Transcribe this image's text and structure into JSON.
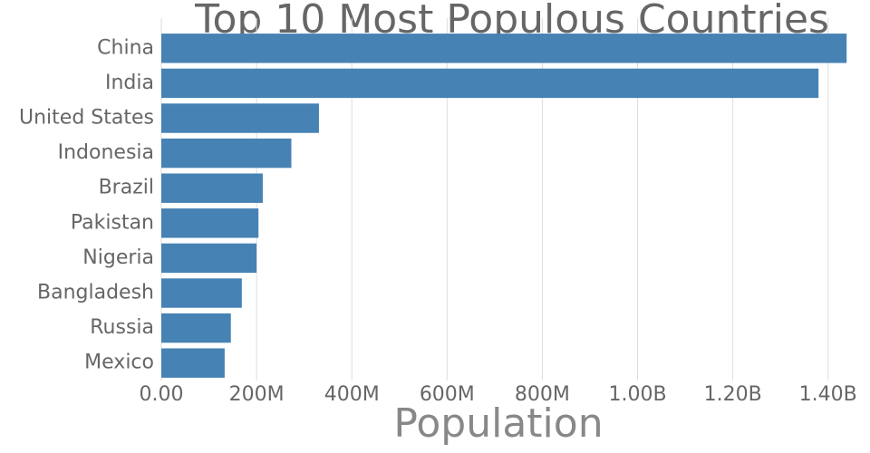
{
  "chart_data": {
    "type": "bar",
    "orientation": "horizontal",
    "title": "Top 10 Most Populous Countries",
    "x_label": "Population",
    "categories": [
      "China",
      "India",
      "United States",
      "Indonesia",
      "Brazil",
      "Pakistan",
      "Nigeria",
      "Bangladesh",
      "Russia",
      "Mexico"
    ],
    "values": [
      1439000000,
      1380000000,
      331000000,
      273000000,
      213000000,
      204000000,
      200000000,
      169000000,
      146000000,
      133000000
    ],
    "color": "#4682b4",
    "xlim": [
      0,
      1450000000
    ],
    "xticks": [
      {
        "value": 0,
        "label": "0.00"
      },
      {
        "value": 200000000,
        "label": "200M"
      },
      {
        "value": 400000000,
        "label": "400M"
      },
      {
        "value": 600000000,
        "label": "600M"
      },
      {
        "value": 800000000,
        "label": "800M"
      },
      {
        "value": 1000000000,
        "label": "1.00B"
      },
      {
        "value": 1200000000,
        "label": "1.20B"
      },
      {
        "value": 1400000000,
        "label": "1.40B"
      }
    ],
    "grid": true
  }
}
